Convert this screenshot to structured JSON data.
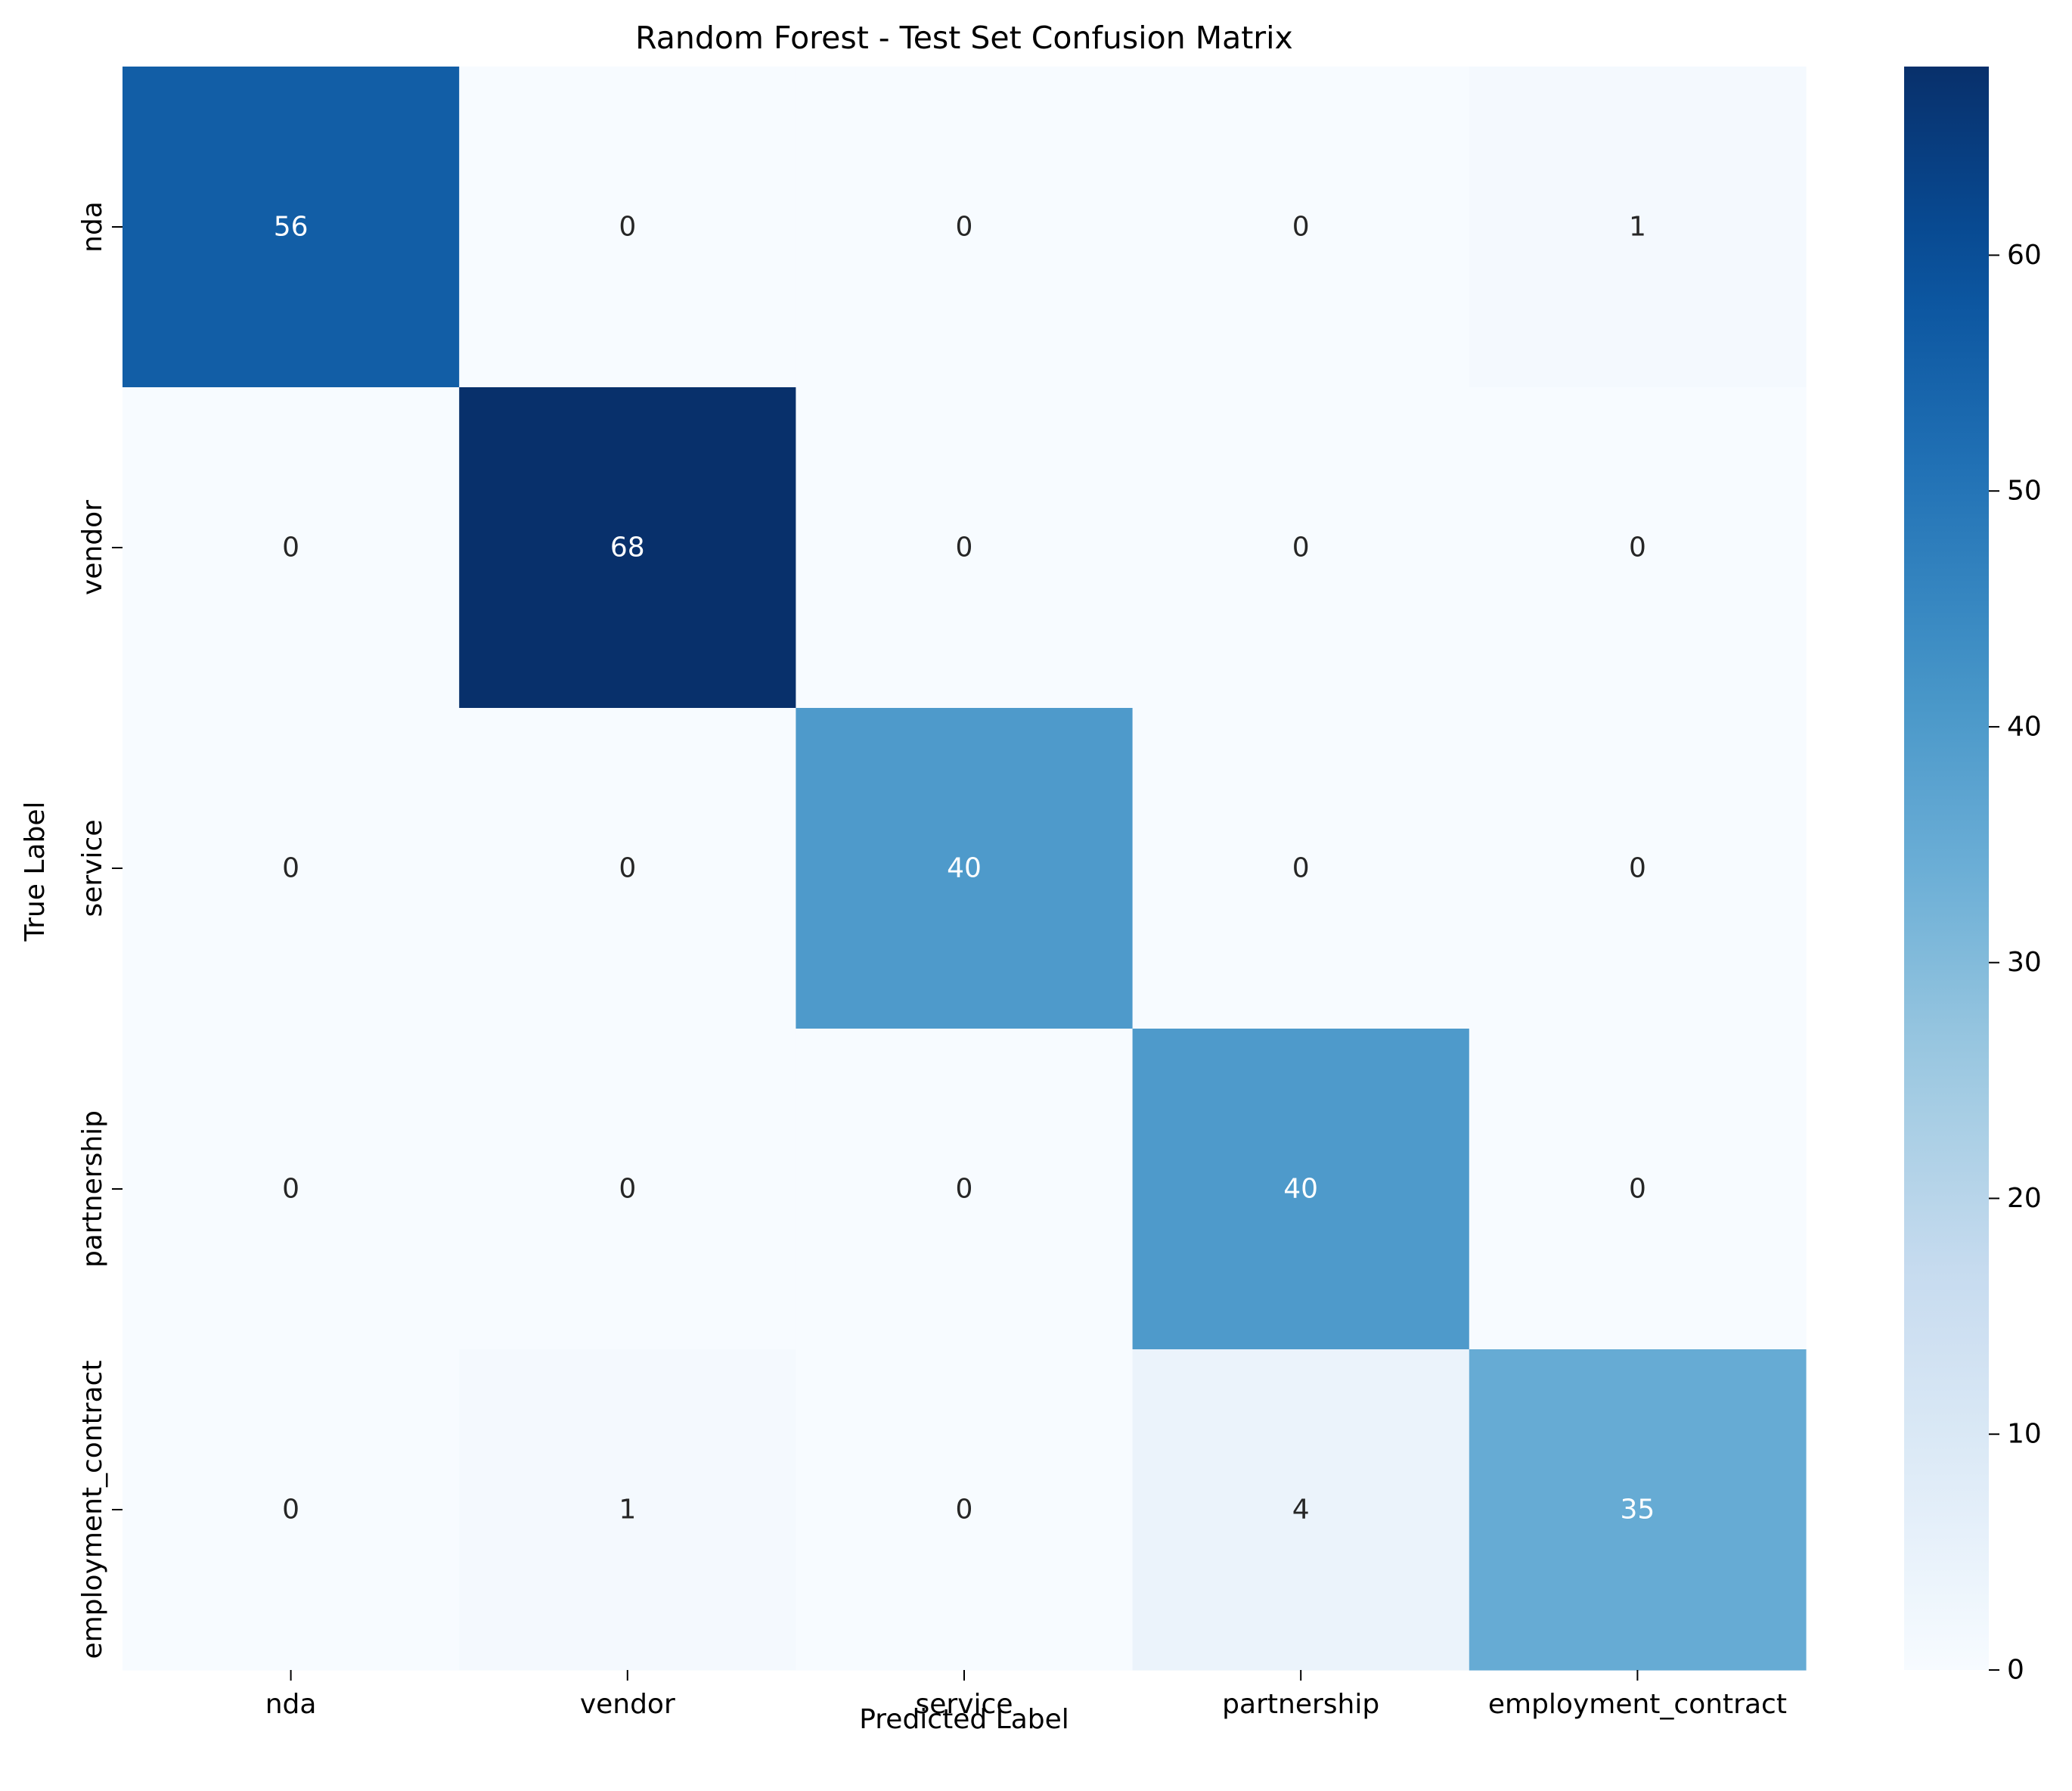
{
  "chart_data": {
    "type": "heatmap",
    "title": "Random Forest - Test Set Confusion Matrix",
    "xlabel": "Predicted Label",
    "ylabel": "True Label",
    "x_categories": [
      "nda",
      "vendor",
      "service",
      "partnership",
      "employment_contract"
    ],
    "y_categories": [
      "nda",
      "vendor",
      "service",
      "partnership",
      "employment_contract"
    ],
    "values": [
      [
        56,
        0,
        0,
        0,
        1
      ],
      [
        0,
        68,
        0,
        0,
        0
      ],
      [
        0,
        0,
        40,
        0,
        0
      ],
      [
        0,
        0,
        0,
        40,
        0
      ],
      [
        0,
        1,
        0,
        4,
        35
      ]
    ],
    "colormap": "Blues",
    "colormap_stops": [
      "#f7fbff",
      "#deebf7",
      "#c6dbef",
      "#9ecae1",
      "#6baed6",
      "#4292c6",
      "#2171b5",
      "#08519c",
      "#08306b"
    ],
    "colorbar": {
      "range": [
        0,
        68
      ],
      "ticks": [
        0,
        10,
        20,
        30,
        40,
        50,
        60
      ]
    },
    "cell_text_colors": {
      "light": "#ffffff",
      "dark": "#262626"
    }
  }
}
